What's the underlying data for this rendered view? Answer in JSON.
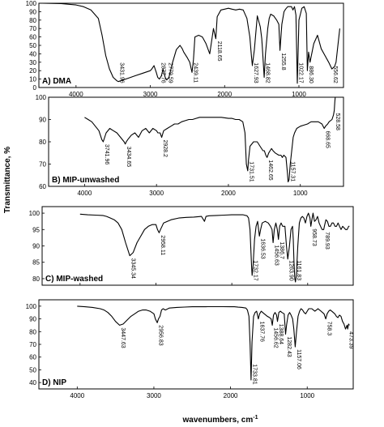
{
  "figure": {
    "ylabel": "Transmittance, %",
    "xlabel": "wavenumbers, cm",
    "xlabel_sup": "-1"
  },
  "chart_data": [
    {
      "type": "line",
      "label": "A) DMA",
      "xlim": [
        4500,
        400
      ],
      "ylim": [
        0,
        100
      ],
      "x_ticks": [
        4000,
        3000,
        2000,
        1000
      ],
      "y_ticks": [
        0,
        10,
        20,
        30,
        40,
        50,
        60,
        70,
        80,
        90,
        100
      ],
      "series": [
        {
          "x": [
            4450,
            4200,
            4000,
            3900,
            3800,
            3700,
            3650,
            3600,
            3550,
            3500,
            3450,
            3431,
            3400,
            3300,
            3200,
            3100,
            3000,
            2980,
            2950,
            2920,
            2900,
            2877,
            2850,
            2830,
            2800,
            2779,
            2750,
            2700,
            2650,
            2600,
            2570,
            2550,
            2500,
            2470,
            2439,
            2420,
            2400,
            2350,
            2300,
            2250,
            2200,
            2150,
            2118,
            2100,
            2050,
            2000,
            1950,
            1900,
            1850,
            1800,
            1750,
            1700,
            1660,
            1640,
            1627,
            1600,
            1560,
            1520,
            1500,
            1490,
            1468,
            1450,
            1420,
            1400,
            1380,
            1340,
            1300,
            1270,
            1255,
            1230,
            1200,
            1180,
            1150,
            1130,
            1100,
            1080,
            1060,
            1040,
            1022,
            1000,
            960,
            930,
            900,
            886,
            870,
            850,
            800,
            750,
            700,
            650,
            600,
            556,
            520,
            500,
            450
          ],
          "y": [
            100,
            99.5,
            98,
            96,
            92,
            82,
            62,
            38,
            22,
            12,
            8,
            7,
            8,
            11,
            14,
            17,
            20,
            22,
            26,
            18,
            12,
            10,
            14,
            22,
            12,
            9,
            12,
            30,
            45,
            50,
            46,
            42,
            35,
            30,
            18,
            33,
            60,
            62,
            60,
            52,
            40,
            70,
            58,
            84,
            92,
            93,
            94,
            93,
            92,
            93,
            92,
            82,
            60,
            38,
            26,
            45,
            85,
            72,
            58,
            45,
            12,
            40,
            70,
            82,
            87,
            85,
            80,
            75,
            44,
            75,
            90,
            93,
            96,
            96,
            96,
            92,
            96,
            86,
            5,
            80,
            94,
            96,
            88,
            20,
            42,
            30,
            52,
            62,
            46,
            38,
            30,
            22,
            25,
            30,
            70
          ]
        }
      ],
      "annotations": [
        {
          "x": 3431,
          "text": "3431.96"
        },
        {
          "x": 2877,
          "text": "2877.76"
        },
        {
          "x": 2779,
          "text": "2779.59"
        },
        {
          "x": 2439,
          "text": "2439.11"
        },
        {
          "x": 2118,
          "text": "2118.65"
        },
        {
          "x": 1627,
          "text": "1627.93"
        },
        {
          "x": 1468,
          "text": "1468.82"
        },
        {
          "x": 1255,
          "text": "1255.8"
        },
        {
          "x": 1022,
          "text": "1022.17"
        },
        {
          "x": 886,
          "text": "886.30"
        },
        {
          "x": 556,
          "text": "556.62"
        }
      ]
    },
    {
      "type": "line",
      "label": "B) MIP-unwashed",
      "xlim": [
        4500,
        400
      ],
      "ylim": [
        60,
        100
      ],
      "x_ticks": [
        4000,
        3000,
        2000,
        1000
      ],
      "y_ticks": [
        60,
        70,
        80,
        90,
        100
      ],
      "series": [
        {
          "x": [
            4000,
            3950,
            3900,
            3850,
            3800,
            3760,
            3741,
            3720,
            3700,
            3650,
            3600,
            3550,
            3500,
            3450,
            3434,
            3420,
            3400,
            3350,
            3300,
            3250,
            3200,
            3150,
            3100,
            3050,
            3000,
            2980,
            2950,
            2928,
            2900,
            2850,
            2800,
            2750,
            2700,
            2650,
            2600,
            2550,
            2500,
            2450,
            2400,
            2300,
            2200,
            2100,
            2000,
            1950,
            1900,
            1850,
            1800,
            1770,
            1750,
            1731,
            1720,
            1700,
            1650,
            1600,
            1560,
            1520,
            1500,
            1480,
            1462,
            1440,
            1420,
            1400,
            1380,
            1350,
            1300,
            1270,
            1250,
            1230,
            1200,
            1180,
            1170,
            1157,
            1140,
            1120,
            1100,
            1080,
            1050,
            1000,
            950,
            900,
            850,
            800,
            750,
            700,
            668,
            650,
            620,
            600,
            560,
            540,
            528,
            520,
            515
          ],
          "y": [
            91,
            90,
            89,
            87,
            85,
            81,
            80,
            82,
            84,
            86,
            85,
            84,
            82,
            80,
            79,
            80,
            81,
            83,
            84,
            82,
            85,
            86,
            84,
            86,
            85,
            84,
            84,
            82,
            85,
            86,
            87,
            88,
            88,
            89,
            89.5,
            90,
            90,
            90.5,
            91,
            91,
            91,
            91,
            90.5,
            90.5,
            90,
            90,
            89,
            84,
            70,
            67,
            72,
            78,
            80,
            80,
            78,
            76,
            76,
            74,
            73,
            75,
            76,
            77,
            76,
            75,
            74,
            74,
            73,
            74,
            73,
            66,
            62,
            63,
            70,
            76,
            82,
            84,
            86,
            87,
            87.5,
            88,
            89,
            89,
            89,
            88,
            86,
            87,
            88,
            89,
            90,
            92,
            94,
            98,
            100
          ]
        }
      ],
      "annotations": [
        {
          "x": 3741,
          "text": "3741.96"
        },
        {
          "x": 3434,
          "text": "3434.65"
        },
        {
          "x": 2928,
          "text": "2928.2"
        },
        {
          "x": 1731,
          "text": "1731.51"
        },
        {
          "x": 1462,
          "text": "1462.65"
        },
        {
          "x": 1157,
          "text": "1157.31"
        },
        {
          "x": 668,
          "text": "668.65"
        },
        {
          "x": 528,
          "text": "528.58"
        }
      ]
    },
    {
      "type": "line",
      "label": "C) MIP-washed",
      "xlim": [
        4500,
        400
      ],
      "ylim": [
        78,
        102
      ],
      "x_ticks": [
        4000,
        3000,
        2000,
        1000
      ],
      "y_ticks": [
        80,
        85,
        90,
        95,
        100
      ],
      "series": [
        {
          "x": [
            4000,
            3900,
            3800,
            3700,
            3650,
            3600,
            3550,
            3500,
            3450,
            3400,
            3345,
            3300,
            3250,
            3200,
            3150,
            3100,
            3050,
            3000,
            2980,
            2958,
            2940,
            2920,
            2900,
            2850,
            2800,
            2700,
            2600,
            2500,
            2400,
            2360,
            2340,
            2300,
            2200,
            2100,
            2000,
            1900,
            1850,
            1800,
            1780,
            1760,
            1740,
            1732,
            1720,
            1700,
            1680,
            1660,
            1636,
            1620,
            1600,
            1560,
            1520,
            1490,
            1470,
            1456,
            1440,
            1420,
            1400,
            1386,
            1370,
            1350,
            1330,
            1300,
            1280,
            1263,
            1240,
            1220,
            1200,
            1190,
            1180,
            1170,
            1161,
            1150,
            1130,
            1110,
            1090,
            1070,
            1050,
            1030,
            1010,
            990,
            970,
            958,
            945,
            930,
            910,
            890,
            870,
            850,
            830,
            810,
            789,
            780,
            760,
            740,
            720,
            700,
            680,
            660,
            640,
            620,
            600,
            580,
            560,
            540,
            520,
            500,
            480,
            460,
            450
          ],
          "y": [
            99.7,
            99.5,
            99.4,
            99.3,
            99,
            98.5,
            98,
            97,
            95,
            91,
            87,
            88,
            91,
            93,
            95,
            96,
            96.5,
            96.5,
            95,
            94,
            95,
            96,
            97,
            97.5,
            98,
            98.5,
            98.7,
            98.8,
            99,
            97.5,
            99,
            99.2,
            99.3,
            99.4,
            99.5,
            99.5,
            99.5,
            99.2,
            98.5,
            95,
            84,
            81,
            84,
            92,
            96,
            97.5,
            93,
            95,
            97,
            97.5,
            97,
            96,
            95,
            91,
            95,
            97,
            95,
            92,
            96,
            97,
            96,
            96,
            90,
            86,
            90,
            95,
            96,
            92,
            85,
            80,
            79,
            81,
            90,
            97,
            98.5,
            99,
            98.5,
            97,
            99,
            100,
            98.5,
            96,
            98,
            100,
            97.5,
            98,
            99,
            97,
            96,
            95,
            95,
            96,
            98,
            97.5,
            96,
            96,
            97,
            97,
            96,
            96,
            97,
            96,
            95,
            96,
            95.5,
            95,
            95,
            96,
            96
          ]
        }
      ],
      "annotations": [
        {
          "x": 3345,
          "text": "3345.34"
        },
        {
          "x": 2958,
          "text": "2958.11"
        },
        {
          "x": 1732,
          "text": "1732.17"
        },
        {
          "x": 1636,
          "text": "1636.53"
        },
        {
          "x": 1456,
          "text": "1456.63"
        },
        {
          "x": 1386,
          "text": "1386.7"
        },
        {
          "x": 1263,
          "text": "1263.90"
        },
        {
          "x": 1161,
          "text": "1161.83"
        },
        {
          "x": 958,
          "text": "958.73"
        },
        {
          "x": 789,
          "text": "789.93"
        }
      ]
    },
    {
      "type": "line",
      "label": "D) NIP",
      "xlim": [
        4500,
        400
      ],
      "ylim": [
        35,
        105
      ],
      "x_ticks": [
        4000,
        3000,
        2000,
        1000
      ],
      "y_ticks": [
        40,
        50,
        60,
        70,
        80,
        90,
        100
      ],
      "series": [
        {
          "x": [
            4000,
            3900,
            3800,
            3700,
            3650,
            3600,
            3550,
            3500,
            3447,
            3400,
            3350,
            3300,
            3250,
            3200,
            3150,
            3100,
            3050,
            3000,
            2980,
            2956,
            2940,
            2920,
            2900,
            2880,
            2850,
            2800,
            2700,
            2600,
            2500,
            2400,
            2300,
            2200,
            2100,
            2000,
            1950,
            1900,
            1850,
            1800,
            1780,
            1760,
            1745,
            1733,
            1720,
            1700,
            1680,
            1660,
            1637,
            1620,
            1600,
            1560,
            1520,
            1490,
            1470,
            1456,
            1440,
            1420,
            1400,
            1388,
            1370,
            1350,
            1330,
            1300,
            1282,
            1270,
            1250,
            1230,
            1210,
            1190,
            1175,
            1157,
            1140,
            1120,
            1100,
            1080,
            1060,
            1040,
            1020,
            1000,
            980,
            960,
            940,
            920,
            900,
            880,
            860,
            840,
            820,
            800,
            780,
            758,
            740,
            720,
            700,
            680,
            660,
            640,
            620,
            600,
            580,
            560,
            540,
            520,
            500,
            480,
            473,
            460,
            450
          ],
          "y": [
            100,
            99.5,
            99,
            98,
            97,
            95,
            92,
            88,
            85,
            86,
            89,
            92,
            94,
            96,
            97,
            97,
            96,
            94,
            90,
            87,
            90,
            92,
            97,
            98,
            97,
            98.5,
            99,
            99.3,
            99.5,
            99.5,
            99.6,
            99.6,
            99.6,
            99.5,
            99.5,
            99.2,
            99,
            98.5,
            97,
            92,
            70,
            42,
            72,
            92,
            95,
            96,
            90,
            94,
            96,
            94,
            92,
            91,
            90,
            85,
            93,
            95,
            93,
            88,
            95,
            96,
            95,
            94,
            78,
            85,
            93,
            95,
            93,
            90,
            82,
            68,
            80,
            92,
            96,
            98,
            97,
            95,
            94,
            96,
            98,
            98,
            98,
            97,
            96,
            97,
            98,
            97,
            96,
            95,
            94,
            90,
            94,
            96,
            97,
            96,
            95,
            94,
            92,
            91,
            93,
            92,
            88,
            86,
            82,
            85,
            82,
            86,
            85
          ]
        }
      ],
      "annotations": [
        {
          "x": 3447,
          "text": "3447.63"
        },
        {
          "x": 2956,
          "text": "2956.83"
        },
        {
          "x": 1733,
          "text": "1733.81"
        },
        {
          "x": 1637,
          "text": "1637.76"
        },
        {
          "x": 1456,
          "text": "1456.62"
        },
        {
          "x": 1388,
          "text": "1388.64"
        },
        {
          "x": 1282,
          "text": "1282.43"
        },
        {
          "x": 1157,
          "text": "1157.06"
        },
        {
          "x": 758,
          "text": "758.3"
        },
        {
          "x": 473,
          "text": "473.39"
        }
      ]
    }
  ]
}
